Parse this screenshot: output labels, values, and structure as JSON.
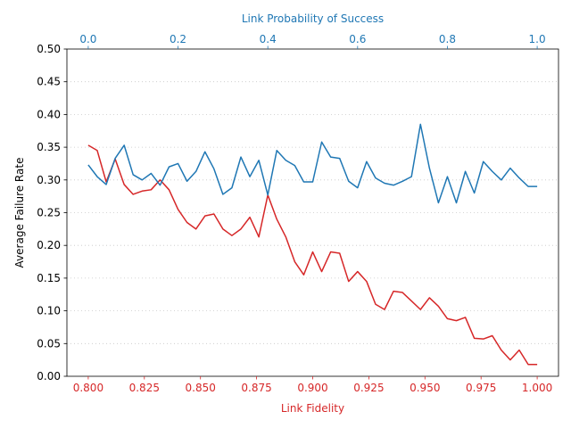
{
  "chart_data": {
    "type": "line",
    "title": "",
    "xlabel": "Link Fidelity",
    "x2label": "Link Probability of Success",
    "ylabel": "Average Failure Rate",
    "xlim": [
      0.7905,
      1.0095
    ],
    "x2lim": [
      -0.0475,
      1.0475
    ],
    "ylim": [
      0.0,
      0.5
    ],
    "grid": "horizontal dotted",
    "x_ticks": [
      "0.800",
      "0.825",
      "0.850",
      "0.875",
      "0.900",
      "0.925",
      "0.950",
      "0.975",
      "1.000"
    ],
    "x2_ticks": [
      "0.0",
      "0.2",
      "0.4",
      "0.6",
      "0.8",
      "1.0"
    ],
    "y_ticks": [
      "0.00",
      "0.05",
      "0.10",
      "0.15",
      "0.20",
      "0.25",
      "0.30",
      "0.35",
      "0.40",
      "0.45",
      "0.50"
    ],
    "colors": {
      "fidelity": "#d62728",
      "probability": "#1f77b4"
    },
    "series": [
      {
        "axis": "bottom",
        "color": "#d62728",
        "x": [
          0.8,
          0.804,
          0.808,
          0.812,
          0.816,
          0.82,
          0.824,
          0.828,
          0.832,
          0.836,
          0.84,
          0.844,
          0.848,
          0.852,
          0.856,
          0.86,
          0.864,
          0.868,
          0.872,
          0.876,
          0.88,
          0.884,
          0.888,
          0.892,
          0.896,
          0.9,
          0.904,
          0.908,
          0.912,
          0.916,
          0.92,
          0.924,
          0.928,
          0.932,
          0.936,
          0.94,
          0.944,
          0.948,
          0.952,
          0.956,
          0.96,
          0.964,
          0.968,
          0.972,
          0.976,
          0.98,
          0.984,
          0.988,
          0.992,
          0.996,
          1.0
        ],
        "y": [
          0.353,
          0.345,
          0.297,
          0.332,
          0.293,
          0.278,
          0.283,
          0.285,
          0.3,
          0.285,
          0.255,
          0.235,
          0.225,
          0.245,
          0.248,
          0.225,
          0.215,
          0.225,
          0.243,
          0.213,
          0.277,
          0.24,
          0.213,
          0.175,
          0.155,
          0.19,
          0.16,
          0.19,
          0.188,
          0.145,
          0.16,
          0.145,
          0.11,
          0.102,
          0.13,
          0.128,
          0.115,
          0.102,
          0.12,
          0.107,
          0.088,
          0.085,
          0.09,
          0.058,
          0.057,
          0.062,
          0.04,
          0.025,
          0.04,
          0.018,
          0.018
        ]
      },
      {
        "axis": "top",
        "color": "#1f77b4",
        "x": [
          0.0,
          0.02,
          0.04,
          0.06,
          0.08,
          0.1,
          0.12,
          0.14,
          0.16,
          0.18,
          0.2,
          0.22,
          0.24,
          0.26,
          0.28,
          0.3,
          0.32,
          0.34,
          0.36,
          0.38,
          0.4,
          0.42,
          0.44,
          0.46,
          0.48,
          0.5,
          0.52,
          0.54,
          0.56,
          0.58,
          0.6,
          0.62,
          0.64,
          0.66,
          0.68,
          0.7,
          0.72,
          0.74,
          0.76,
          0.78,
          0.8,
          0.82,
          0.84,
          0.86,
          0.88,
          0.9,
          0.92,
          0.94,
          0.96,
          0.98,
          1.0
        ],
        "y": [
          0.323,
          0.305,
          0.293,
          0.333,
          0.353,
          0.308,
          0.3,
          0.31,
          0.292,
          0.32,
          0.325,
          0.298,
          0.313,
          0.343,
          0.317,
          0.278,
          0.288,
          0.335,
          0.305,
          0.33,
          0.277,
          0.345,
          0.33,
          0.322,
          0.297,
          0.297,
          0.358,
          0.335,
          0.333,
          0.298,
          0.288,
          0.328,
          0.303,
          0.295,
          0.292,
          0.298,
          0.305,
          0.385,
          0.318,
          0.265,
          0.305,
          0.265,
          0.313,
          0.28,
          0.328,
          0.313,
          0.3,
          0.318,
          0.303,
          0.29,
          0.29
        ]
      }
    ]
  }
}
